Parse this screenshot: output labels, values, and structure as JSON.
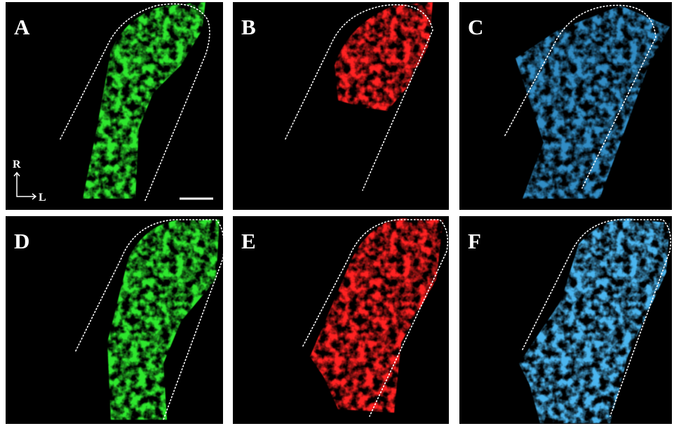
{
  "panels": [
    {
      "label": "A"
    },
    {
      "label": "B"
    },
    {
      "label": "C"
    },
    {
      "label": "D"
    },
    {
      "label": "E"
    },
    {
      "label": "F"
    }
  ],
  "orientation": {
    "up": "R",
    "right": "L"
  }
}
